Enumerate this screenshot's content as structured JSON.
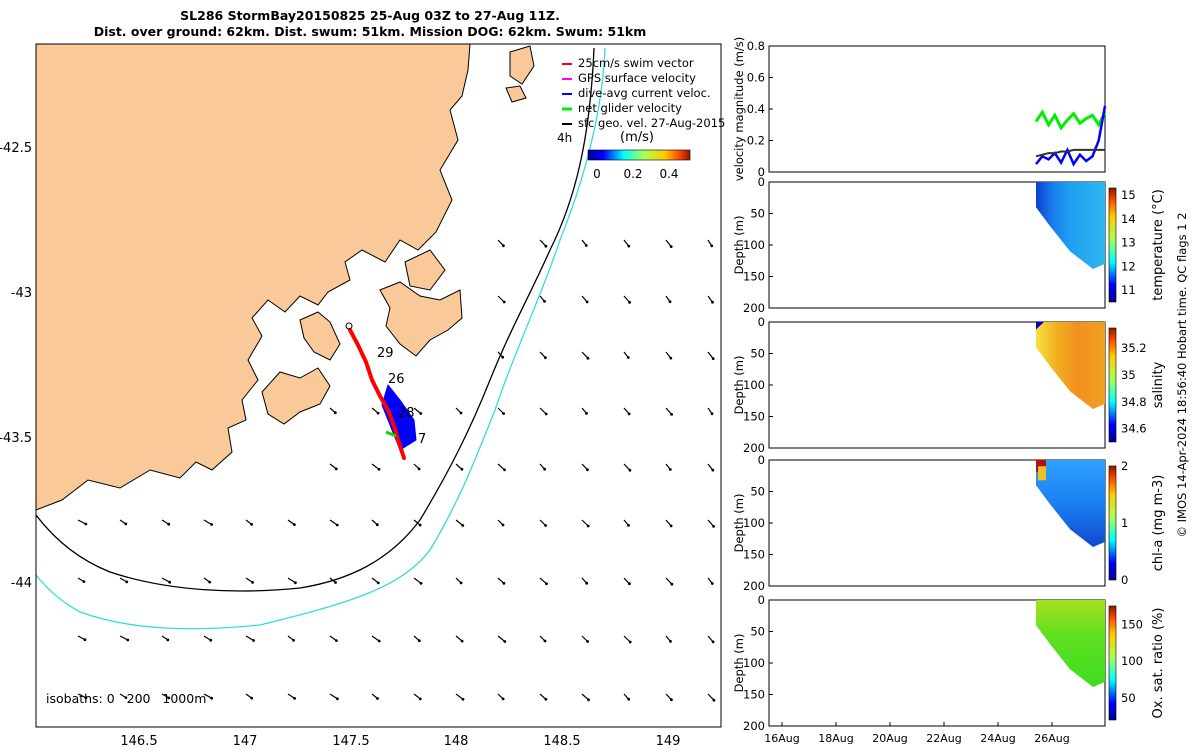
{
  "title": {
    "line1": "SL286 StormBay20150825 25-Aug 03Z to 27-Aug 11Z.",
    "line2": "Dist. over ground: 62km. Dist. swum: 51km. Mission DOG: 62km. Swum: 51km"
  },
  "credit": "© IMOS 14-Apr-2024 18:56:40 Hobart time. QC flags 1 2",
  "map": {
    "x_ticks": [
      "146.5",
      "147",
      "147.5",
      "148",
      "148.5",
      "149"
    ],
    "y_ticks": [
      "-42.5",
      "-43",
      "-43.5",
      "-44"
    ],
    "legend": [
      {
        "label": "25cm/s swim vector",
        "color": "#ff0000"
      },
      {
        "label": "GPS surface velocity",
        "color": "#ff00ff"
      },
      {
        "label": "dive-avg current veloc.",
        "color": "#0000ff"
      },
      {
        "label": "net glider velocity",
        "color": "#00ee00"
      },
      {
        "label": "sfc geo. vel. 27-Aug-2015",
        "color": "#000000"
      }
    ],
    "colorbar_unit": "(m/s)",
    "colorbar_ticks": [
      "0",
      "0.2",
      "0.4"
    ],
    "scale_label": "4h",
    "isobath_label": "isobaths: 0   200   1000m",
    "track_day_labels": [
      "29",
      "26",
      "28",
      "7"
    ],
    "colors": {
      "land": "#f9c999",
      "isobath_200": "#000000",
      "isobath_1000": "#33dddd",
      "track": "#ff0000",
      "current": "#0000ff"
    }
  },
  "panels": {
    "time_ticks": [
      "16Aug",
      "18Aug",
      "20Aug",
      "22Aug",
      "24Aug",
      "26Aug"
    ],
    "velocity": {
      "ylabel": "velocity magnitude (m/s)",
      "y_ticks": [
        "0",
        "0.2",
        "0.4",
        "0.6",
        "0.8"
      ]
    },
    "depth_ticks": [
      "0",
      "50",
      "100",
      "150",
      "200"
    ],
    "depth_label": "Depth (m)",
    "sections": [
      {
        "cbar_label": "temperature (°C)",
        "cbar_ticks": [
          "15",
          "14",
          "13",
          "12",
          "11"
        ],
        "cmap": "cool"
      },
      {
        "cbar_label": "salinity",
        "cbar_ticks": [
          "35.2",
          "35",
          "34.8",
          "34.6"
        ],
        "cmap": "warm"
      },
      {
        "cbar_label": "chl-a (mg m-3)",
        "cbar_ticks": [
          "2",
          "1",
          "0"
        ],
        "cmap": "chl"
      },
      {
        "cbar_label": "Ox. sat. ratio (%)",
        "cbar_ticks": [
          "150",
          "100",
          "50"
        ],
        "cmap": "green"
      }
    ]
  },
  "chart_data": [
    {
      "type": "scatter",
      "title": "SL286 StormBay20150825 25-Aug 03Z to 27-Aug 11Z.",
      "xlim": [
        146.0,
        149.25
      ],
      "ylim": [
        -44.5,
        -42.1
      ],
      "glider_track": {
        "lon": [
          147.48,
          147.55,
          147.62,
          147.68,
          147.74,
          147.77
        ],
        "lat": [
          -43.12,
          -43.22,
          -43.33,
          -43.42,
          -43.5,
          -43.58
        ]
      },
      "isobaths_m": [
        0,
        200,
        1000
      ]
    },
    {
      "type": "line",
      "ylabel": "velocity magnitude (m/s)",
      "ylim": [
        0,
        0.8
      ],
      "x_range": [
        "15Aug",
        "28Aug"
      ],
      "series": [
        {
          "name": "net glider velocity",
          "values": [
            0.32,
            0.38,
            0.3,
            0.36,
            0.28,
            0.33,
            0.37,
            0.31,
            0.34,
            0.36,
            0.3,
            0.38
          ]
        },
        {
          "name": "dive-avg current veloc.",
          "values": [
            0.05,
            0.1,
            0.08,
            0.12,
            0.06,
            0.14,
            0.05,
            0.11,
            0.07,
            0.1,
            0.2,
            0.42
          ]
        },
        {
          "name": "sfc geo. vel. 27-Aug-2015",
          "values": [
            0.1,
            0.11,
            0.12,
            0.12,
            0.13,
            0.13,
            0.14,
            0.14,
            0.14,
            0.14,
            0.14,
            0.14
          ]
        }
      ]
    },
    {
      "type": "heatmap",
      "ylabel": "Depth (m)",
      "clabel": "temperature (°C)",
      "clim": [
        10.5,
        15.3
      ],
      "ylim": [
        200,
        0
      ]
    },
    {
      "type": "heatmap",
      "ylabel": "Depth (m)",
      "clabel": "salinity",
      "clim": [
        34.5,
        35.35
      ],
      "ylim": [
        200,
        0
      ]
    },
    {
      "type": "heatmap",
      "ylabel": "Depth (m)",
      "clabel": "chl-a (mg m-3)",
      "clim": [
        0,
        2
      ],
      "ylim": [
        200,
        0
      ]
    },
    {
      "type": "heatmap",
      "ylabel": "Depth (m)",
      "clabel": "Ox. sat. ratio (%)",
      "clim": [
        20,
        175
      ],
      "ylim": [
        200,
        0
      ]
    }
  ]
}
